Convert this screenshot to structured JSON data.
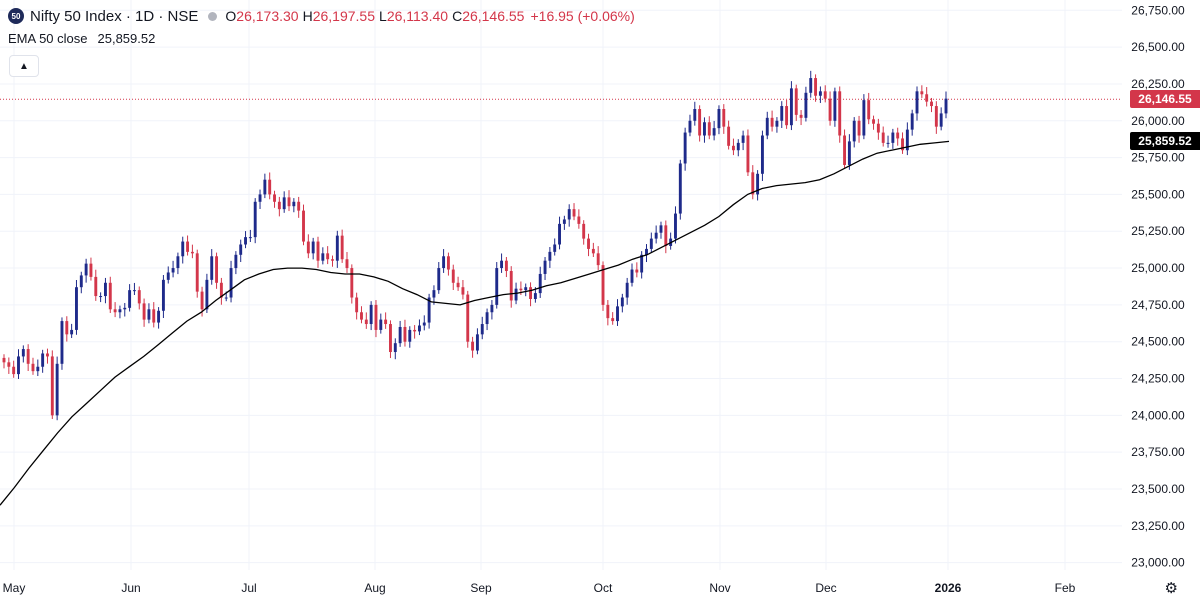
{
  "header": {
    "symbol_badge": "50",
    "title": "Nifty 50 Index · 1D · NSE",
    "ohlc": [
      {
        "key": "O",
        "value": "26,173.30"
      },
      {
        "key": "H",
        "value": "26,197.55"
      },
      {
        "key": "L",
        "value": "26,113.40"
      },
      {
        "key": "C",
        "value": "26,146.55"
      }
    ],
    "change": "+16.95 (+0.06%)"
  },
  "indicator": {
    "label": "EMA 50 close",
    "value": "25,859.52"
  },
  "price_tags": {
    "last": "26,146.55",
    "ema": "25,859.52"
  },
  "colors": {
    "up": "#1e2a8a",
    "down": "#d3364a",
    "grid": "#f0f3fa",
    "ema": "#000000",
    "text": "#131722"
  },
  "icons": {
    "collapse": "chevron-up-icon",
    "settings": "gear-icon"
  },
  "chart_data": {
    "type": "candlestick",
    "y_ticks": [
      23000,
      23250,
      23500,
      23750,
      24000,
      24250,
      24500,
      24750,
      25000,
      25250,
      25500,
      25750,
      26000,
      26250,
      26500,
      26750
    ],
    "y_tick_labels": [
      "23,000.00",
      "23,250.00",
      "23,500.00",
      "23,750.00",
      "24,000.00",
      "24,250.00",
      "24,500.00",
      "24,750.00",
      "25,000.00",
      "25,250.00",
      "25,500.00",
      "25,750.00",
      "26,000.00",
      "26,250.00",
      "26,500.00",
      "26,750.00"
    ],
    "ylim": [
      22950,
      26820
    ],
    "x_labels": [
      "May",
      "Jun",
      "Jul",
      "Aug",
      "Sep",
      "Oct",
      "Nov",
      "Dec",
      "2026",
      "Feb"
    ],
    "last_price": 26146.55,
    "ema_value": 25859.52,
    "closes": [
      24360,
      24330,
      24280,
      24400,
      24450,
      24350,
      24300,
      24330,
      24420,
      24400,
      24000,
      24350,
      24640,
      24550,
      24580,
      24870,
      24950,
      25030,
      24940,
      24810,
      24810,
      24900,
      24720,
      24700,
      24720,
      24730,
      24850,
      24850,
      24760,
      24650,
      24720,
      24630,
      24710,
      24920,
      24970,
      25000,
      25080,
      25180,
      25110,
      25100,
      24840,
      24720,
      24920,
      25080,
      24900,
      24800,
      24800,
      25000,
      25090,
      25160,
      25210,
      25210,
      25450,
      25500,
      25600,
      25500,
      25450,
      25400,
      25480,
      25420,
      25450,
      25390,
      25180,
      25100,
      25180,
      25050,
      25100,
      25060,
      25050,
      25220,
      25060,
      25000,
      24800,
      24700,
      24650,
      24620,
      24750,
      24580,
      24650,
      24620,
      24430,
      24490,
      24600,
      24500,
      24580,
      24570,
      24610,
      24630,
      24800,
      24850,
      25000,
      25080,
      24990,
      24900,
      24870,
      24820,
      24500,
      24440,
      24550,
      24620,
      24700,
      24750,
      25000,
      25050,
      24980,
      24780,
      24860,
      24850,
      24870,
      24790,
      24830,
      24960,
      25050,
      25110,
      25160,
      25300,
      25330,
      25400,
      25350,
      25300,
      25200,
      25130,
      25100,
      25020,
      24750,
      24660,
      24640,
      24740,
      24800,
      24900,
      24990,
      24970,
      25090,
      25130,
      25200,
      25240,
      25290,
      25150,
      25200,
      25370,
      25710,
      25920,
      26000,
      26080,
      25900,
      25990,
      25900,
      25950,
      26080,
      25960,
      25830,
      25800,
      25850,
      25900,
      25650,
      25500,
      25640,
      25900,
      26020,
      25960,
      26000,
      26100,
      25970,
      26220,
      26040,
      26020,
      26190,
      26290,
      26170,
      26200,
      26150,
      26000,
      26200,
      25900,
      25700,
      25860,
      26000,
      25900,
      26140,
      26010,
      25980,
      25920,
      25850,
      25850,
      25920,
      25880,
      25800,
      25940,
      26050,
      26200,
      26180,
      26130,
      26100,
      25960,
      26050,
      26150
    ],
    "ema": [
      23390,
      23510,
      23640,
      23760,
      23880,
      23990,
      24080,
      24170,
      24260,
      24330,
      24400,
      24480,
      24560,
      24640,
      24700,
      24780,
      24850,
      24920,
      24960,
      24990,
      25000,
      25000,
      24990,
      24970,
      24960,
      24960,
      24940,
      24910,
      24860,
      24820,
      24770,
      24760,
      24750,
      24780,
      24800,
      24820,
      24830,
      24850,
      24880,
      24900,
      24930,
      24960,
      24990,
      25020,
      25060,
      25090,
      25140,
      25190,
      25240,
      25290,
      25350,
      25430,
      25500,
      25540,
      25560,
      25570,
      25580,
      25600,
      25640,
      25690,
      25740,
      25780,
      25800,
      25820,
      25840,
      25850,
      25860
    ]
  }
}
